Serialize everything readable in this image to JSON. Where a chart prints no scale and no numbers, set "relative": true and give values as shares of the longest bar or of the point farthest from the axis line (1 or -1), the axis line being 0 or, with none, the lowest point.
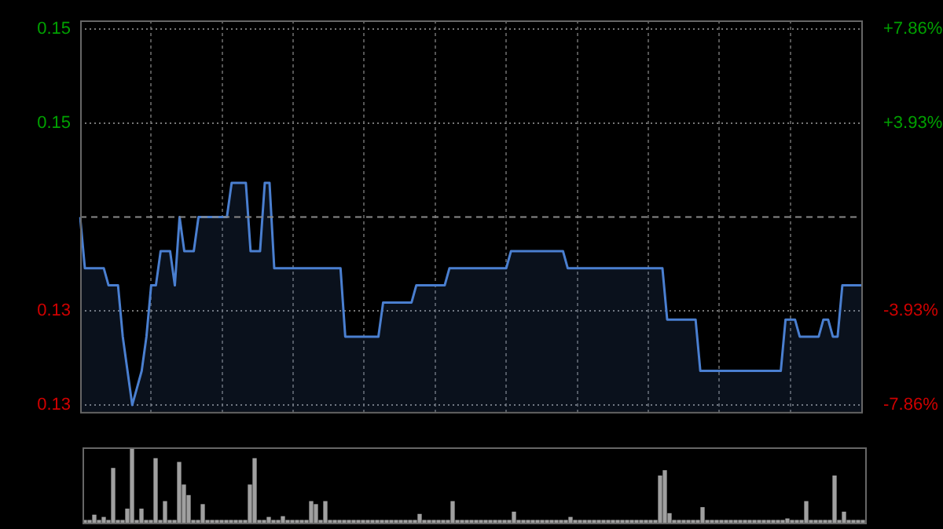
{
  "chart_data": [
    {
      "type": "area",
      "color": "#4a7fd0",
      "categories": [
        null,
        null,
        null,
        null,
        null,
        null,
        null,
        null,
        null,
        null,
        null,
        null,
        null,
        null,
        null,
        null,
        null,
        null,
        null,
        null,
        null,
        null,
        null,
        null,
        null,
        null,
        null,
        null,
        null,
        null,
        null,
        null,
        null,
        null,
        null,
        null,
        null,
        null,
        null,
        null,
        null,
        null,
        null,
        null,
        null,
        null,
        null,
        null,
        null,
        null,
        null,
        null,
        null,
        null,
        null,
        null,
        null,
        null,
        null,
        null,
        null,
        null,
        null,
        null,
        null,
        null,
        null,
        null,
        null,
        null,
        null,
        null,
        null,
        null,
        null,
        null,
        null,
        null,
        null,
        null,
        null,
        null,
        null,
        null,
        null,
        null,
        null,
        null,
        null,
        null,
        null,
        null,
        null,
        null,
        null,
        null,
        null,
        null,
        null,
        null,
        null,
        null,
        null,
        null,
        null,
        null,
        null,
        null,
        null,
        null,
        null,
        null,
        null,
        null,
        null,
        null,
        null,
        null,
        null,
        null,
        null,
        null,
        null,
        null,
        null,
        null,
        null,
        null,
        null,
        null,
        null,
        null,
        null,
        null,
        null,
        null,
        null,
        null,
        null,
        null,
        null,
        null,
        null,
        null,
        null,
        null,
        null,
        null,
        null,
        null,
        null,
        null,
        null,
        null,
        null,
        null,
        null,
        null,
        null,
        null,
        null,
        null,
        null,
        null,
        null,
        null
      ],
      "values": [
        0.14,
        0.137,
        0.137,
        0.137,
        0.137,
        0.137,
        0.136,
        0.136,
        0.136,
        0.133,
        0.131,
        0.129,
        0.13,
        0.131,
        0.133,
        0.136,
        0.136,
        0.138,
        0.138,
        0.138,
        0.136,
        0.14,
        0.138,
        0.138,
        0.138,
        0.14,
        0.14,
        0.14,
        0.14,
        0.14,
        0.14,
        0.14,
        0.142,
        0.142,
        0.142,
        0.142,
        0.138,
        0.138,
        0.138,
        0.142,
        0.142,
        0.137,
        0.137,
        0.137,
        0.137,
        0.137,
        0.137,
        0.137,
        0.137,
        0.137,
        0.137,
        0.137,
        0.137,
        0.137,
        0.137,
        0.137,
        0.133,
        0.133,
        0.133,
        0.133,
        0.133,
        0.133,
        0.133,
        0.133,
        0.135,
        0.135,
        0.135,
        0.135,
        0.135,
        0.135,
        0.135,
        0.136,
        0.136,
        0.136,
        0.136,
        0.136,
        0.136,
        0.136,
        0.137,
        0.137,
        0.137,
        0.137,
        0.137,
        0.137,
        0.137,
        0.137,
        0.137,
        0.137,
        0.137,
        0.137,
        0.137,
        0.138,
        0.138,
        0.138,
        0.138,
        0.138,
        0.138,
        0.138,
        0.138,
        0.138,
        0.138,
        0.138,
        0.138,
        0.137,
        0.137,
        0.137,
        0.137,
        0.137,
        0.137,
        0.137,
        0.137,
        0.137,
        0.137,
        0.137,
        0.137,
        0.137,
        0.137,
        0.137,
        0.137,
        0.137,
        0.137,
        0.137,
        0.137,
        0.137,
        0.134,
        0.134,
        0.134,
        0.134,
        0.134,
        0.134,
        0.134,
        0.131,
        0.131,
        0.131,
        0.131,
        0.131,
        0.131,
        0.131,
        0.131,
        0.131,
        0.131,
        0.131,
        0.131,
        0.131,
        0.131,
        0.131,
        0.131,
        0.131,
        0.131,
        0.134,
        0.134,
        0.134,
        0.133,
        0.133,
        0.133,
        0.133,
        0.133,
        0.134,
        0.134,
        0.133,
        0.133,
        0.136,
        0.136,
        0.136,
        0.136,
        0.136
      ],
      "ylim": [
        0.1286,
        0.1515
      ],
      "yticks": [
        {
          "value": 0.129,
          "label": "0.13"
        },
        {
          "value": 0.1345,
          "label": "0.13"
        },
        {
          "value": 0.1455,
          "label": "0.15"
        },
        {
          "value": 0.151,
          "label": "0.15"
        }
      ],
      "y2lim": [
        -8.14,
        8.21
      ],
      "y2ticks": [
        {
          "value": -7.86,
          "label": "-7.86%"
        },
        {
          "value": -3.93,
          "label": "-3.93%"
        },
        {
          "value": 3.93,
          "label": "+3.93%"
        },
        {
          "value": 7.86,
          "label": "+7.86%"
        }
      ],
      "ref_lines": [
        {
          "axis": "y",
          "value": 0.14,
          "line_style": "dashed"
        }
      ],
      "grid": true,
      "legend": false
    },
    {
      "type": "bar",
      "relative": true,
      "color": "#a0a0a0",
      "categories": [
        null,
        null,
        null,
        null,
        null,
        null,
        null,
        null,
        null,
        null,
        null,
        null,
        null,
        null,
        null,
        null,
        null,
        null,
        null,
        null,
        null,
        null,
        null,
        null,
        null,
        null,
        null,
        null,
        null,
        null,
        null,
        null,
        null,
        null,
        null,
        null,
        null,
        null,
        null,
        null,
        null,
        null,
        null,
        null,
        null,
        null,
        null,
        null,
        null,
        null,
        null,
        null,
        null,
        null,
        null,
        null,
        null,
        null,
        null,
        null,
        null,
        null,
        null,
        null,
        null,
        null,
        null,
        null,
        null,
        null,
        null,
        null,
        null,
        null,
        null,
        null,
        null,
        null,
        null,
        null,
        null,
        null,
        null,
        null,
        null,
        null,
        null,
        null,
        null,
        null,
        null,
        null,
        null,
        null,
        null,
        null,
        null,
        null,
        null,
        null,
        null,
        null,
        null,
        null,
        null,
        null,
        null,
        null,
        null,
        null,
        null,
        null,
        null,
        null,
        null,
        null,
        null,
        null,
        null,
        null,
        null,
        null,
        null,
        null,
        null,
        null,
        null,
        null,
        null,
        null,
        null,
        null,
        null,
        null,
        null,
        null,
        null,
        null,
        null,
        null,
        null,
        null,
        null,
        null,
        null,
        null,
        null,
        null,
        null,
        null,
        null,
        null,
        null,
        null,
        null,
        null,
        null,
        null,
        null,
        null,
        null,
        null,
        null,
        null,
        null,
        null
      ],
      "values": [
        0.03,
        0.03,
        0.1,
        0.03,
        0.07,
        0.03,
        0.72,
        0.03,
        0.03,
        0.18,
        1,
        0.03,
        0.18,
        0.03,
        0.03,
        0.85,
        0.03,
        0.28,
        0.03,
        0.03,
        0.8,
        0.5,
        0.36,
        0.03,
        0.03,
        0.24,
        0.03,
        0.03,
        0.03,
        0.03,
        0.03,
        0.03,
        0.03,
        0.03,
        0.03,
        0.5,
        0.85,
        0.03,
        0.03,
        0.07,
        0.03,
        0.03,
        0.08,
        0.03,
        0.03,
        0.03,
        0.03,
        0.03,
        0.28,
        0.24,
        0.03,
        0.28,
        0.03,
        0.03,
        0.03,
        0.03,
        0.03,
        0.03,
        0.03,
        0.03,
        0.03,
        0.03,
        0.03,
        0.03,
        0.03,
        0.03,
        0.03,
        0.03,
        0.03,
        0.03,
        0.03,
        0.11,
        0.03,
        0.03,
        0.03,
        0.03,
        0.03,
        0.03,
        0.28,
        0.03,
        0.03,
        0.03,
        0.03,
        0.03,
        0.03,
        0.03,
        0.03,
        0.03,
        0.03,
        0.03,
        0.03,
        0.14,
        0.03,
        0.03,
        0.03,
        0.03,
        0.03,
        0.03,
        0.03,
        0.03,
        0.03,
        0.03,
        0.03,
        0.07,
        0.03,
        0.03,
        0.03,
        0.03,
        0.03,
        0.03,
        0.03,
        0.03,
        0.03,
        0.03,
        0.03,
        0.03,
        0.03,
        0.03,
        0.03,
        0.03,
        0.03,
        0.03,
        0.62,
        0.69,
        0.12,
        0.03,
        0.03,
        0.03,
        0.03,
        0.03,
        0.03,
        0.2,
        0.03,
        0.03,
        0.03,
        0.03,
        0.03,
        0.03,
        0.03,
        0.03,
        0.03,
        0.03,
        0.03,
        0.03,
        0.03,
        0.03,
        0.03,
        0.03,
        0.03,
        0.05,
        0.03,
        0.03,
        0.03,
        0.28,
        0.03,
        0.03,
        0.03,
        0.03,
        0.03,
        0.62,
        0.03,
        0.14,
        0.03,
        0.03,
        0.03,
        0.03
      ],
      "legend": false
    }
  ]
}
